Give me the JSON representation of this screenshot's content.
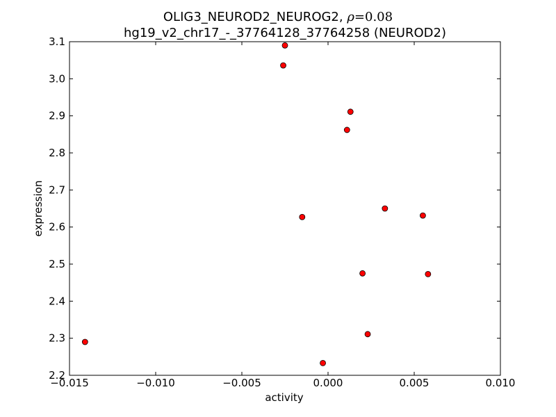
{
  "chart_data": {
    "type": "scatter",
    "title_line1_prefix": "OLIG3_NEUROD2_NEUROG2, ",
    "title_rho_symbol": "ρ",
    "title_rho_value": "=0.08",
    "title_line2": "hg19_v2_chr17_-_37764128_37764258 (NEUROD2)",
    "xlabel": "activity",
    "ylabel": "expression",
    "xlim": [
      -0.015,
      0.01
    ],
    "ylim": [
      2.2,
      3.1
    ],
    "xticks": [
      -0.015,
      -0.01,
      -0.005,
      0.0,
      0.005,
      0.01
    ],
    "xtick_labels": [
      "−0.015",
      "−0.010",
      "−0.005",
      "0.000",
      "0.005",
      "0.010"
    ],
    "yticks": [
      2.2,
      2.3,
      2.4,
      2.5,
      2.6,
      2.7,
      2.8,
      2.9,
      3.0,
      3.1
    ],
    "ytick_labels": [
      "2.2",
      "2.3",
      "2.4",
      "2.5",
      "2.6",
      "2.7",
      "2.8",
      "2.9",
      "3.0",
      "3.1"
    ],
    "grid": false,
    "marker_color": "#ff0000",
    "marker_edge_color": "#000000",
    "points": [
      {
        "x": -0.0141,
        "y": 2.29
      },
      {
        "x": -0.0025,
        "y": 3.09
      },
      {
        "x": -0.0026,
        "y": 3.036
      },
      {
        "x": 0.0013,
        "y": 2.911
      },
      {
        "x": 0.0011,
        "y": 2.862
      },
      {
        "x": -0.0015,
        "y": 2.627
      },
      {
        "x": 0.0033,
        "y": 2.65
      },
      {
        "x": 0.0055,
        "y": 2.631
      },
      {
        "x": 0.002,
        "y": 2.475
      },
      {
        "x": 0.0058,
        "y": 2.473
      },
      {
        "x": 0.0023,
        "y": 2.311
      },
      {
        "x": -0.0003,
        "y": 2.233
      }
    ]
  }
}
